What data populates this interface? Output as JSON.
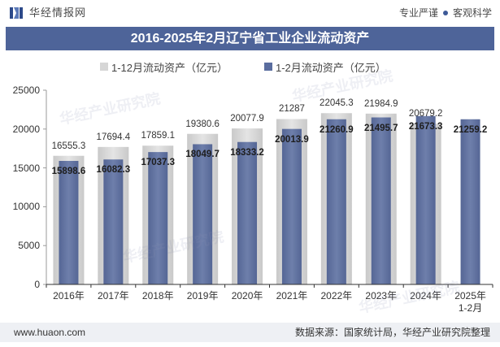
{
  "header": {
    "logo_text": "华经情报网",
    "tagline_left": "专业严谨",
    "tagline_right": "客观科学"
  },
  "colors": {
    "title_bar": "#4e6499",
    "logo": "#2d4a8a",
    "footer_bg": "#eef0f4"
  },
  "watermark": "华经产业研究院",
  "chart_data": {
    "type": "bar",
    "barmode": "overlay",
    "title": "2016-2025年2月辽宁省工业企业流动资产",
    "categories": [
      "2016年",
      "2017年",
      "2018年",
      "2019年",
      "2020年",
      "2021年",
      "2022年",
      "2023年",
      "2024年",
      "2025年\n1-2月"
    ],
    "series": [
      {
        "name": "1-12月流动资产（亿元）",
        "color": "#d6d6d6",
        "values": [
          16555.3,
          17694.4,
          17859.1,
          19380.6,
          20077.9,
          21287,
          22045.3,
          21984.9,
          20679.2,
          null
        ]
      },
      {
        "name": "1-2月流动资产（亿元）",
        "color": "#5a6d9f",
        "values": [
          15898.6,
          16082.3,
          17037.3,
          18049.7,
          18333.2,
          20013.9,
          21260.9,
          21495.7,
          21673.3,
          21259.2
        ]
      }
    ],
    "ylim": [
      0,
      25000
    ],
    "yticks": [
      0,
      5000,
      10000,
      15000,
      20000,
      25000
    ],
    "grid": false,
    "legend": "top-center"
  },
  "footer": {
    "website": "www.huaon.com",
    "source": "数据来源：国家统计局，华经产业研究院整理"
  }
}
